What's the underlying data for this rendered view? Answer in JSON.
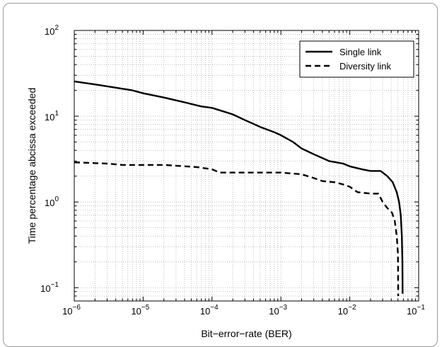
{
  "chart_data": {
    "type": "line",
    "xlabel": "Bit−error−rate (BER)",
    "ylabel": "Time percentage abcissa exceeded",
    "x_scale": "log",
    "y_scale": "log",
    "xlim": [
      1e-06,
      0.1
    ],
    "ylim": [
      0.07,
      100
    ],
    "grid": true,
    "legend_position": "top-right",
    "x_ticks": [
      {
        "value": 1e-06,
        "base": "10",
        "exp": "−6"
      },
      {
        "value": 1e-05,
        "base": "10",
        "exp": "−5"
      },
      {
        "value": 0.0001,
        "base": "10",
        "exp": "−4"
      },
      {
        "value": 0.001,
        "base": "10",
        "exp": "−3"
      },
      {
        "value": 0.01,
        "base": "10",
        "exp": "−2"
      },
      {
        "value": 0.1,
        "base": "10",
        "exp": "−1"
      }
    ],
    "y_ticks": [
      {
        "value": 0.1,
        "base": "10",
        "exp": "−1"
      },
      {
        "value": 1,
        "base": "10",
        "exp": "0"
      },
      {
        "value": 10,
        "base": "10",
        "exp": "1"
      },
      {
        "value": 100,
        "base": "10",
        "exp": "2"
      }
    ],
    "series": [
      {
        "name": "Single link",
        "style": "solid",
        "color": "#000000",
        "points": [
          [
            1e-06,
            25.5
          ],
          [
            2e-06,
            23.5
          ],
          [
            4e-06,
            21.5
          ],
          [
            7e-06,
            20
          ],
          [
            1e-05,
            18.5
          ],
          [
            2e-05,
            16.5
          ],
          [
            4e-05,
            14.5
          ],
          [
            7e-05,
            13
          ],
          [
            0.0001,
            12.5
          ],
          [
            0.0002,
            10.5
          ],
          [
            0.0003,
            9.0
          ],
          [
            0.0005,
            7.5
          ],
          [
            0.0008,
            6.5
          ],
          [
            0.001,
            6.0
          ],
          [
            0.0015,
            5.0
          ],
          [
            0.002,
            4.2
          ],
          [
            0.003,
            3.6
          ],
          [
            0.005,
            3.0
          ],
          [
            0.008,
            2.8
          ],
          [
            0.01,
            2.6
          ],
          [
            0.015,
            2.4
          ],
          [
            0.02,
            2.3
          ],
          [
            0.028,
            2.3
          ],
          [
            0.035,
            2.0
          ],
          [
            0.042,
            1.7
          ],
          [
            0.048,
            1.3
          ],
          [
            0.052,
            1.0
          ],
          [
            0.055,
            0.7
          ],
          [
            0.057,
            0.4
          ],
          [
            0.058,
            0.2
          ],
          [
            0.0585,
            0.085
          ]
        ]
      },
      {
        "name": "Diversity link",
        "style": "dashed",
        "color": "#000000",
        "points": [
          [
            1e-06,
            2.9
          ],
          [
            3e-06,
            2.8
          ],
          [
            5e-06,
            2.7
          ],
          [
            2e-05,
            2.7
          ],
          [
            6e-05,
            2.55
          ],
          [
            0.0001,
            2.4
          ],
          [
            0.00013,
            2.2
          ],
          [
            0.0005,
            2.2
          ],
          [
            0.001,
            2.2
          ],
          [
            0.002,
            2.1
          ],
          [
            0.003,
            1.9
          ],
          [
            0.004,
            1.75
          ],
          [
            0.006,
            1.7
          ],
          [
            0.008,
            1.6
          ],
          [
            0.01,
            1.5
          ],
          [
            0.013,
            1.3
          ],
          [
            0.02,
            1.25
          ],
          [
            0.026,
            1.25
          ],
          [
            0.03,
            1.0
          ],
          [
            0.035,
            0.85
          ],
          [
            0.041,
            0.75
          ],
          [
            0.045,
            0.6
          ],
          [
            0.048,
            0.4
          ],
          [
            0.05,
            0.25
          ],
          [
            0.0505,
            0.08
          ]
        ]
      }
    ]
  }
}
